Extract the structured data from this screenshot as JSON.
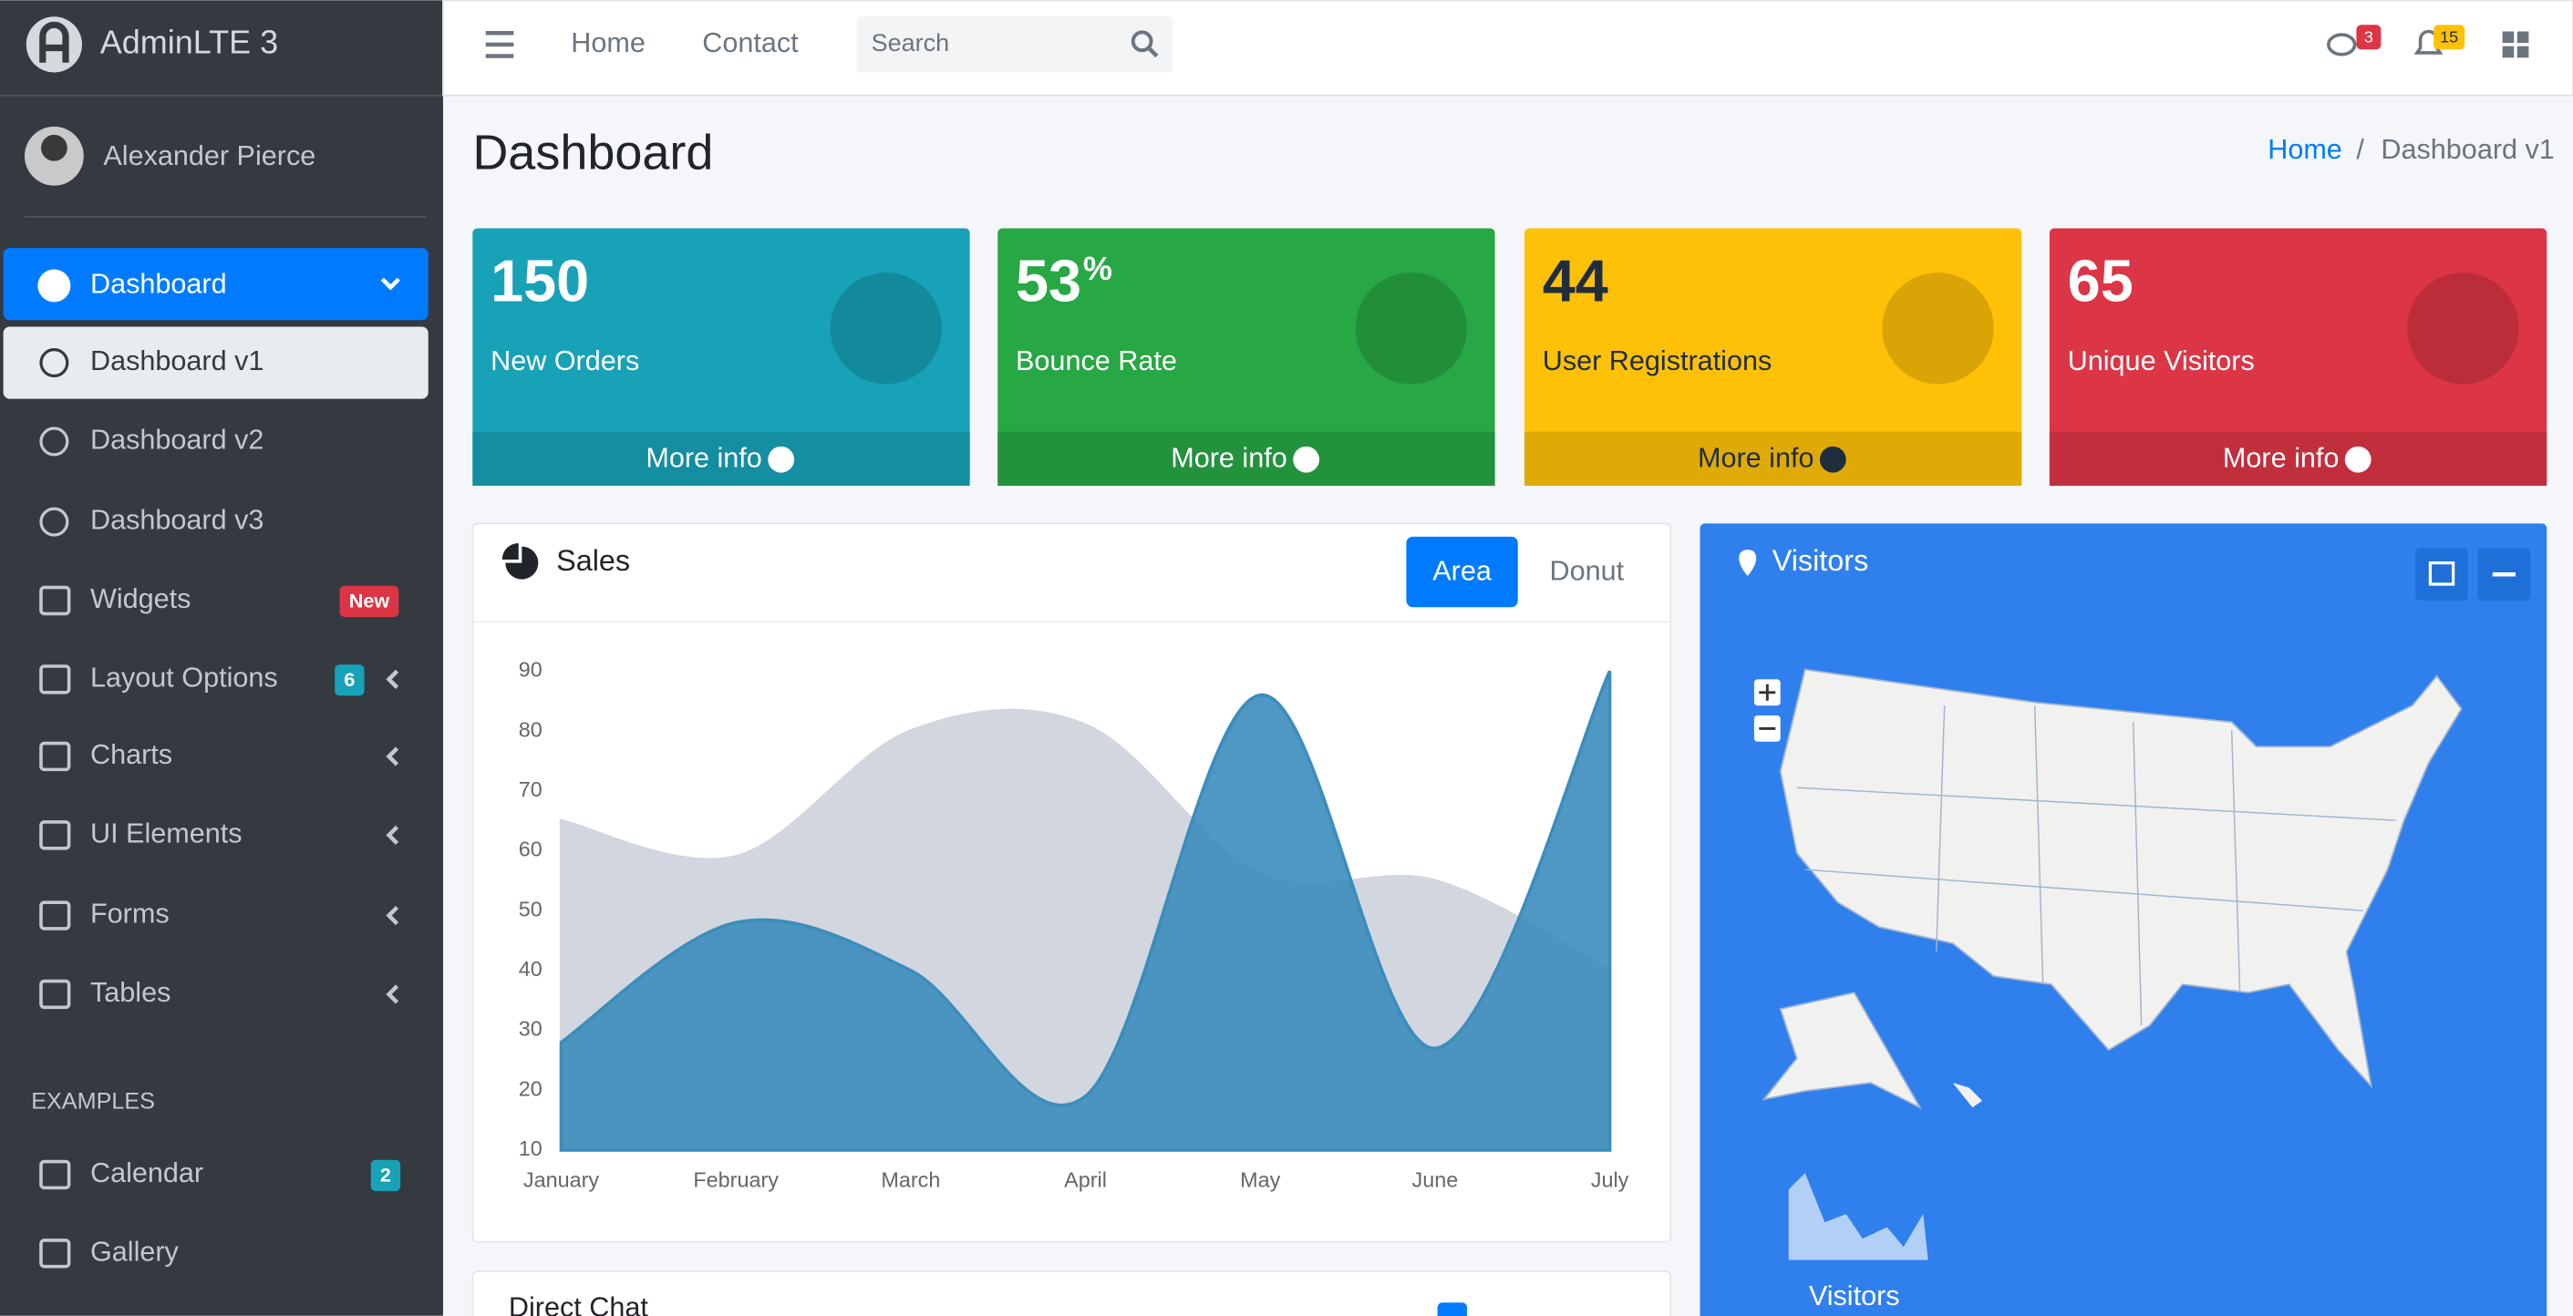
{
  "brand": "AdminLTE 3",
  "user": "Alexander Pierce",
  "sidebar": {
    "dashboard": "Dashboard",
    "subitems": [
      "Dashboard v1",
      "Dashboard v2",
      "Dashboard v3"
    ],
    "items": [
      {
        "label": "Widgets",
        "badge": "New"
      },
      {
        "label": "Layout Options",
        "badge": "6"
      },
      {
        "label": "Charts"
      },
      {
        "label": "UI Elements"
      },
      {
        "label": "Forms"
      },
      {
        "label": "Tables"
      }
    ],
    "section": "EXAMPLES",
    "examples": [
      {
        "label": "Calendar",
        "badge": "2"
      },
      {
        "label": "Gallery"
      }
    ]
  },
  "navbar": {
    "links": [
      "Home",
      "Contact"
    ],
    "search": "Search",
    "messages_badge": "3",
    "notifications_badge": "15"
  },
  "header": {
    "title": "Dashboard",
    "breadcrumb": [
      "Home",
      "Dashboard v1"
    ]
  },
  "info_boxes": [
    {
      "value": "150",
      "label": "New Orders",
      "link": "More info"
    },
    {
      "value": "53",
      "suffix": "%",
      "label": "Bounce Rate",
      "link": "More info"
    },
    {
      "value": "44",
      "label": "User Registrations",
      "link": "More info"
    },
    {
      "value": "65",
      "label": "Unique Visitors",
      "link": "More info"
    }
  ],
  "sales_card": {
    "title": "Sales",
    "tabs": [
      "Area",
      "Donut"
    ]
  },
  "chart_data": {
    "type": "area",
    "categories": [
      "January",
      "February",
      "March",
      "April",
      "May",
      "June",
      "July"
    ],
    "series": [
      {
        "color": "#d2d6de",
        "values": [
          65,
          59,
          80,
          81,
          56,
          55,
          40
        ]
      },
      {
        "color": "#3c8dbc",
        "values": [
          28,
          48,
          40,
          19,
          86,
          27,
          90
        ]
      }
    ],
    "ylim": [
      10,
      90
    ],
    "yticks": [
      10,
      20,
      30,
      40,
      50,
      60,
      70,
      80,
      90
    ],
    "grid": false
  },
  "visitors_card": {
    "title": "Visitors",
    "footer": "Visitors"
  },
  "chat_card": {
    "title": "Direct Chat"
  }
}
